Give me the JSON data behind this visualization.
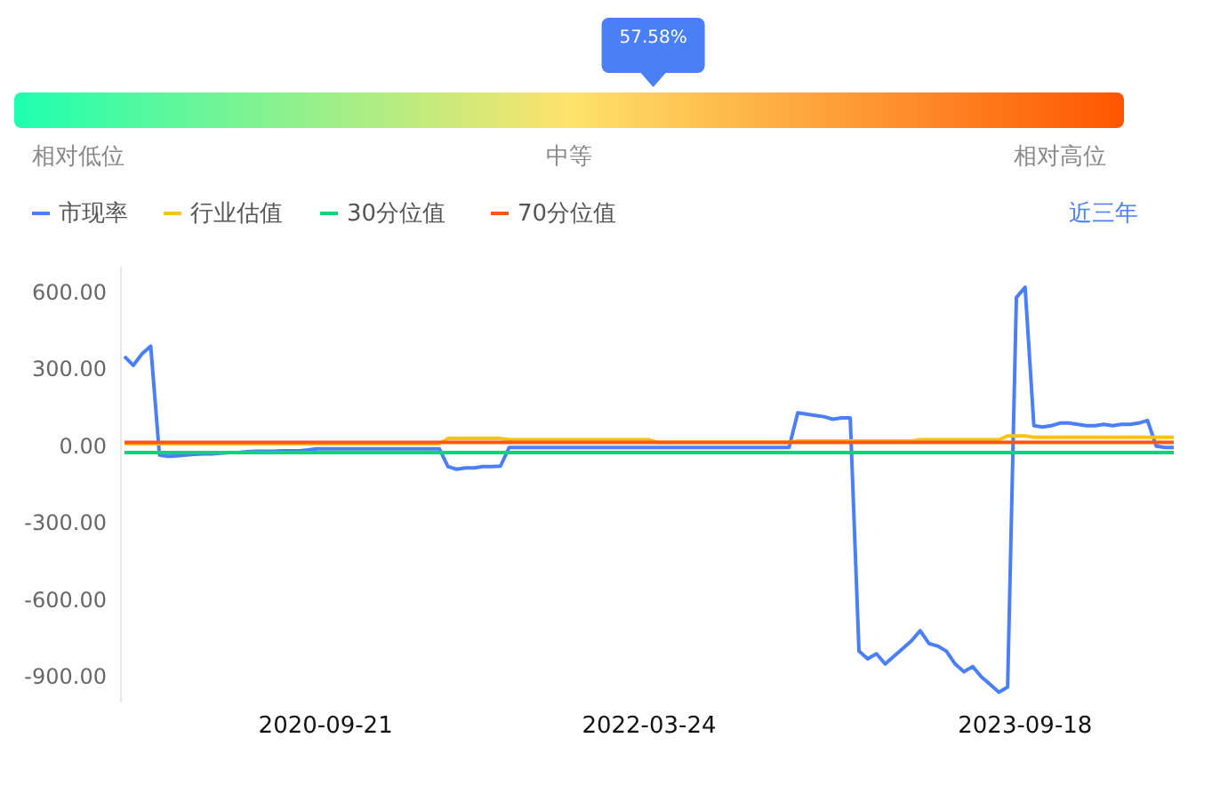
{
  "chart_data": [
    {
      "type": "other",
      "values": [
        57.58
      ],
      "value_labels": [
        "57.58%"
      ],
      "annotations": [
        "相对低位",
        "中等",
        "相对高位"
      ]
    },
    {
      "type": "line",
      "legend": "top left",
      "annotations": [
        "近三年"
      ],
      "categories": [
        null,
        null,
        null,
        null,
        null,
        null,
        null,
        null,
        null,
        null,
        null,
        null,
        null,
        null,
        null,
        null,
        null,
        null,
        null,
        null,
        null,
        null,
        null,
        "2020-09-21",
        null,
        null,
        null,
        null,
        null,
        null,
        null,
        null,
        null,
        null,
        null,
        null,
        null,
        null,
        null,
        null,
        null,
        null,
        null,
        null,
        null,
        null,
        null,
        null,
        null,
        null,
        null,
        null,
        null,
        null,
        null,
        null,
        null,
        null,
        null,
        null,
        "2022-03-24",
        null,
        null,
        null,
        null,
        null,
        null,
        null,
        null,
        null,
        null,
        null,
        null,
        null,
        null,
        null,
        null,
        null,
        null,
        null,
        null,
        null,
        null,
        null,
        null,
        null,
        null,
        null,
        null,
        null,
        null,
        null,
        null,
        null,
        null,
        null,
        null,
        null,
        null,
        null,
        null,
        null,
        null,
        "2023-09-18",
        null,
        null,
        null,
        null,
        null,
        null,
        null,
        null,
        null,
        null,
        null,
        null,
        null,
        null,
        null,
        null,
        null
      ],
      "ylim": [
        -1000,
        700
      ],
      "yticks": [
        {
          "value": -900,
          "label": "-900.00"
        },
        {
          "value": -600,
          "label": "-600.00"
        },
        {
          "value": -300,
          "label": "-300.00"
        },
        {
          "value": 0,
          "label": "0.00"
        },
        {
          "value": 300,
          "label": "300.00"
        },
        {
          "value": 600,
          "label": "600.00"
        }
      ],
      "series": [
        {
          "name": "市现率",
          "color": "#4a7ff7",
          "values": [
            350,
            315,
            360,
            390,
            -35,
            -40,
            -38,
            -35,
            -32,
            -30,
            -30,
            -28,
            -25,
            -25,
            -22,
            -20,
            -20,
            -20,
            -18,
            -18,
            -18,
            -15,
            -10,
            -10,
            -10,
            -10,
            -10,
            -10,
            -10,
            -10,
            -10,
            -10,
            -10,
            -10,
            -10,
            -10,
            -10,
            -80,
            -90,
            -85,
            -85,
            -80,
            -80,
            -78,
            -5,
            -5,
            -5,
            -5,
            -5,
            -5,
            -5,
            -5,
            -5,
            -5,
            -5,
            -5,
            -5,
            -5,
            -5,
            -5,
            -5,
            -5,
            -5,
            -5,
            -5,
            -5,
            -5,
            -5,
            -5,
            -5,
            -5,
            -5,
            -5,
            -5,
            -5,
            -5,
            -5,
            130,
            125,
            120,
            115,
            105,
            110,
            110,
            -800,
            -830,
            -810,
            -850,
            -820,
            -790,
            -760,
            -720,
            -770,
            -780,
            -800,
            -850,
            -880,
            -860,
            -900,
            -930,
            -960,
            -940,
            580,
            620,
            80,
            75,
            80,
            90,
            90,
            85,
            80,
            80,
            85,
            80,
            85,
            85,
            90,
            100,
            0,
            -5,
            -5
          ]
        },
        {
          "name": "行业估值",
          "color": "#f7c31a",
          "values": [
            10,
            10,
            10,
            10,
            10,
            10,
            10,
            10,
            10,
            10,
            10,
            10,
            10,
            10,
            10,
            10,
            10,
            10,
            10,
            10,
            10,
            10,
            10,
            10,
            10,
            10,
            10,
            10,
            10,
            10,
            10,
            10,
            10,
            10,
            10,
            10,
            10,
            30,
            30,
            30,
            30,
            30,
            30,
            30,
            25,
            25,
            25,
            25,
            25,
            25,
            25,
            25,
            25,
            25,
            25,
            25,
            25,
            25,
            25,
            25,
            25,
            15,
            15,
            15,
            15,
            15,
            15,
            15,
            15,
            15,
            15,
            15,
            15,
            15,
            15,
            15,
            15,
            20,
            20,
            20,
            20,
            20,
            20,
            20,
            20,
            20,
            20,
            20,
            20,
            20,
            20,
            25,
            25,
            25,
            25,
            25,
            25,
            25,
            25,
            25,
            25,
            40,
            40,
            40,
            35,
            35,
            35,
            35,
            35,
            35,
            35,
            35,
            35,
            35,
            35,
            35,
            35,
            35,
            35,
            35,
            35
          ]
        },
        {
          "name": "30分位值",
          "color": "#10d27a",
          "values": [
            -25,
            -25,
            -25,
            -25,
            -25,
            -25,
            -25,
            -25,
            -25,
            -25,
            -25,
            -25,
            -25,
            -25,
            -25,
            -25,
            -25,
            -25,
            -25,
            -25,
            -25,
            -25,
            -25,
            -25,
            -25,
            -25,
            -25,
            -25,
            -25,
            -25,
            -25,
            -25,
            -25,
            -25,
            -25,
            -25,
            -25,
            -25,
            -25,
            -25,
            -25,
            -25,
            -25,
            -25,
            -25,
            -25,
            -25,
            -25,
            -25,
            -25,
            -25,
            -25,
            -25,
            -25,
            -25,
            -25,
            -25,
            -25,
            -25,
            -25,
            -25,
            -25,
            -25,
            -25,
            -25,
            -25,
            -25,
            -25,
            -25,
            -25,
            -25,
            -25,
            -25,
            -25,
            -25,
            -25,
            -25,
            -25,
            -25,
            -25,
            -25,
            -25,
            -25,
            -25,
            -25,
            -25,
            -25,
            -25,
            -25,
            -25,
            -25,
            -25,
            -25,
            -25,
            -25,
            -25,
            -25,
            -25,
            -25,
            -25,
            -25,
            -25,
            -25,
            -25,
            -25,
            -25,
            -25,
            -25,
            -25,
            -25,
            -25,
            -25,
            -25,
            -25,
            -25,
            -25,
            -25,
            -25,
            -25,
            -25,
            -25
          ]
        },
        {
          "name": "70分位值",
          "color": "#ff5a12",
          "values": [
            15,
            15,
            15,
            15,
            15,
            15,
            15,
            15,
            15,
            15,
            15,
            15,
            15,
            15,
            15,
            15,
            15,
            15,
            15,
            15,
            15,
            15,
            15,
            15,
            15,
            15,
            15,
            15,
            15,
            15,
            15,
            15,
            15,
            15,
            15,
            15,
            15,
            15,
            15,
            15,
            15,
            15,
            15,
            15,
            15,
            15,
            15,
            15,
            15,
            15,
            15,
            15,
            15,
            15,
            15,
            15,
            15,
            15,
            15,
            15,
            15,
            15,
            15,
            15,
            15,
            15,
            15,
            15,
            15,
            15,
            15,
            15,
            15,
            15,
            15,
            15,
            15,
            15,
            15,
            15,
            15,
            15,
            15,
            15,
            15,
            15,
            15,
            15,
            15,
            15,
            15,
            15,
            15,
            15,
            15,
            15,
            15,
            15,
            15,
            15,
            15,
            15,
            15,
            15,
            15,
            15,
            15,
            15,
            15,
            15,
            15,
            15,
            15,
            15,
            15,
            15,
            15,
            15,
            15,
            15,
            15
          ]
        }
      ]
    }
  ]
}
